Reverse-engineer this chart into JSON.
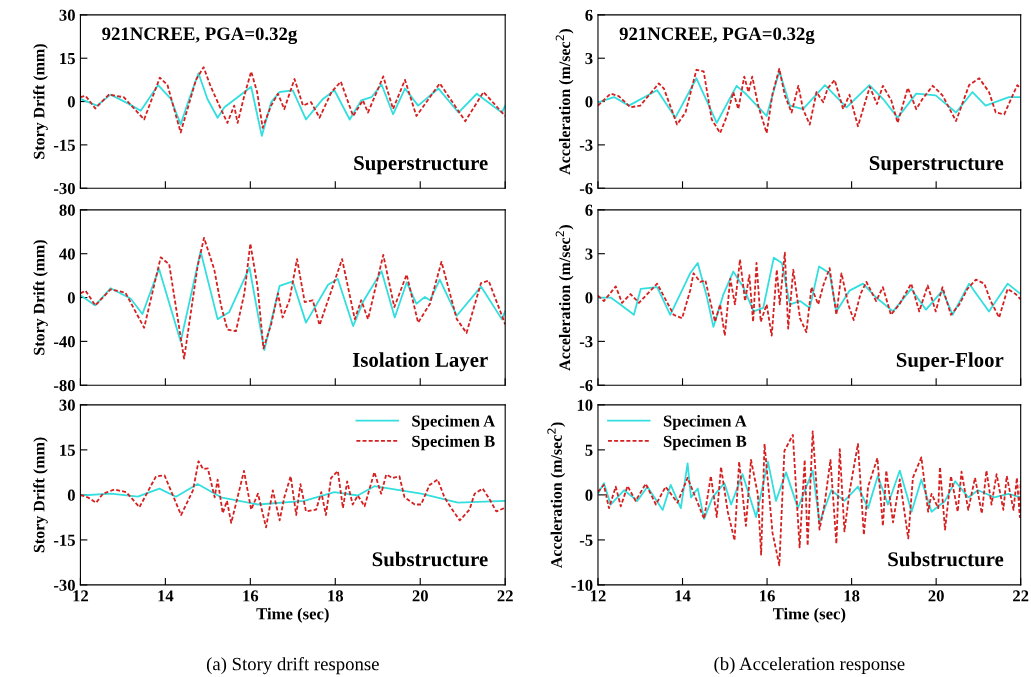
{
  "chart_data": [
    {
      "type": "line",
      "ylabel": "Story Drift (mm)",
      "xlim": [
        12,
        22
      ],
      "xticks": [
        12,
        14,
        16,
        18,
        20,
        22
      ],
      "ylim": [
        -30,
        30
      ],
      "yticks": [
        -30,
        -15,
        0,
        15,
        30
      ],
      "tick_labels": "y",
      "grid": false,
      "annotations": [
        "921NCREE, PGA=0.32g",
        "Superstructure"
      ],
      "series": [
        {
          "color": "#33dede",
          "line_style": "solid",
          "x": [
            12.0,
            12.39,
            12.71,
            13.14,
            13.42,
            13.83,
            14.13,
            14.36,
            14.56,
            14.78,
            14.99,
            15.23,
            15.39,
            15.7,
            16.02,
            16.27,
            16.49,
            16.69,
            17.0,
            17.31,
            17.71,
            17.98,
            18.34,
            18.61,
            18.85,
            19.09,
            19.36,
            19.64,
            19.95,
            20.43,
            20.9,
            21.33,
            21.92,
            22.0
          ],
          "values": [
            0.9,
            -1.4,
            2.4,
            -0.8,
            -3.2,
            5.7,
            0.9,
            -7.9,
            0.9,
            9.8,
            0.9,
            -5.6,
            -2,
            1.5,
            5.1,
            -11.9,
            -0.2,
            3.3,
            3.9,
            -6.2,
            0.9,
            3.9,
            -6.2,
            0.4,
            1.5,
            5.9,
            -4.4,
            4.5,
            -1.4,
            4.5,
            -3.8,
            2.7,
            -3.8,
            -1.4
          ]
        },
        {
          "color": "#d62020",
          "line_style": "dashed",
          "x": [
            12.0,
            12.12,
            12.35,
            12.67,
            13.02,
            13.5,
            13.87,
            14.05,
            14.36,
            14.72,
            14.9,
            15.07,
            15.27,
            15.46,
            15.62,
            15.7,
            15.86,
            16.02,
            16.16,
            16.29,
            16.49,
            16.65,
            16.8,
            17.04,
            17.24,
            17.43,
            17.63,
            17.91,
            18.13,
            18.42,
            18.65,
            18.77,
            19.13,
            19.36,
            19.64,
            19.91,
            20.46,
            21.06,
            21.49,
            22.0
          ],
          "values": [
            1.5,
            2,
            -2.4,
            2.4,
            1.5,
            -6.2,
            8.3,
            5.7,
            -10.7,
            7.5,
            11.9,
            5.1,
            -1.4,
            -7.4,
            -1.4,
            -7.4,
            2.1,
            10.4,
            3.3,
            -9.1,
            -1.4,
            2.7,
            -2.6,
            7.8,
            -1.4,
            -0.2,
            -5.6,
            3.3,
            6.9,
            -5.0,
            0.4,
            -3.8,
            8.7,
            -2.6,
            7.5,
            -5.0,
            6.3,
            -6.8,
            3.3,
            -5.0
          ]
        }
      ]
    },
    {
      "type": "line",
      "ylabel": "Acceleration (m/sec$^{2}$)",
      "xlim": [
        12,
        22
      ],
      "xticks": [
        12,
        14,
        16,
        18,
        20,
        22
      ],
      "ylim": [
        -6,
        6
      ],
      "yticks": [
        -6,
        -3,
        0,
        3,
        6
      ],
      "tick_labels": "y",
      "grid": false,
      "annotations": [
        "921NCREE, PGA=0.32g",
        "Superstructure"
      ],
      "series": [
        {
          "color": "#33dede",
          "line_style": "solid",
          "x": [
            12,
            12.38,
            12.73,
            13.4,
            13.83,
            14.33,
            14.81,
            15.28,
            15.52,
            15.99,
            16.29,
            16.54,
            16.85,
            17.37,
            17.88,
            18.42,
            18.74,
            19.09,
            19.53,
            19.99,
            20.47,
            20.86,
            21.17,
            21.72,
            22.0
          ],
          "values": [
            -0.05,
            0.31,
            -0.28,
            0.78,
            -1.11,
            1.61,
            -1.47,
            1.09,
            0.47,
            -1.0,
            2.09,
            -0.28,
            -0.52,
            1.14,
            -0.4,
            1.14,
            0.19,
            -1.11,
            0.55,
            0.43,
            -0.76,
            0.66,
            -0.28,
            0.31,
            0.31
          ]
        },
        {
          "color": "#d62020",
          "line_style": "dashed",
          "x": [
            12,
            12.3,
            12.49,
            12.77,
            13.0,
            13.44,
            13.56,
            13.87,
            14.07,
            14.33,
            14.5,
            14.69,
            14.89,
            15.05,
            15.2,
            15.32,
            15.46,
            15.56,
            15.65,
            15.79,
            15.99,
            16.13,
            16.29,
            16.42,
            16.58,
            16.74,
            16.85,
            17.01,
            17.17,
            17.33,
            17.43,
            17.6,
            17.8,
            17.95,
            18.15,
            18.43,
            18.6,
            18.74,
            18.94,
            19.09,
            19.33,
            19.53,
            19.68,
            19.92,
            20.15,
            20.47,
            20.78,
            21.02,
            21.25,
            21.41,
            21.61,
            21.92,
            22.0
          ],
          "values": [
            -0.28,
            0.55,
            0.38,
            -0.4,
            -0.28,
            1.26,
            0.9,
            -1.59,
            -0.76,
            2.2,
            2.09,
            -1.23,
            -2.18,
            -1.0,
            0.66,
            -0.52,
            1.73,
            0.66,
            1.73,
            -0.28,
            -2.18,
            0.55,
            2.27,
            0.43,
            -0.76,
            1.09,
            -0.52,
            -1.59,
            0.66,
            -0.05,
            0.9,
            1.49,
            -0.52,
            0.47,
            -1.71,
            1.02,
            -0.17,
            1.09,
            0.07,
            -1.47,
            0.95,
            -0.52,
            0.19,
            1.09,
            0.43,
            -1.35,
            1.14,
            1.61,
            0.66,
            -0.76,
            -0.88,
            1.14,
            0.9
          ]
        }
      ]
    },
    {
      "type": "line",
      "ylabel": "Story Drift (mm)",
      "xlim": [
        12,
        22
      ],
      "xticks": [
        12,
        14,
        16,
        18,
        20,
        22
      ],
      "ylim": [
        -80,
        80
      ],
      "yticks": [
        -80,
        -40,
        0,
        40,
        80
      ],
      "tick_labels": "y",
      "grid": false,
      "annotations": [
        "Isolation Layer"
      ],
      "series": [
        {
          "color": "#33dede",
          "line_style": "solid",
          "x": [
            12.0,
            12.35,
            12.71,
            13.18,
            13.46,
            13.85,
            14.36,
            14.83,
            15.23,
            15.5,
            15.98,
            16.33,
            16.69,
            17.0,
            17.31,
            17.83,
            18.06,
            18.42,
            18.65,
            19.09,
            19.4,
            19.68,
            19.91,
            20.11,
            20.23,
            20.46,
            20.86,
            21.43,
            21.92,
            22.0
          ],
          "values": [
            2.2,
            -7.2,
            8.5,
            -0.9,
            -15,
            26.3,
            -40.1,
            42,
            -19.7,
            -13.5,
            27.3,
            -48,
            10.7,
            14.7,
            -22.9,
            11.6,
            16.9,
            -26,
            -4.1,
            24.1,
            -18.2,
            13.8,
            -5.6,
            0.6,
            -2.5,
            16.3,
            -16.6,
            10,
            -19.7,
            -12.5
          ]
        },
        {
          "color": "#d62020",
          "line_style": "dashed",
          "x": [
            12.0,
            12.12,
            12.35,
            12.71,
            13.06,
            13.5,
            13.89,
            14.09,
            14.44,
            14.76,
            14.91,
            15.15,
            15.31,
            15.46,
            15.66,
            15.86,
            16.0,
            16.17,
            16.31,
            16.49,
            16.65,
            16.76,
            16.92,
            17.1,
            17.28,
            17.47,
            17.63,
            17.83,
            18.16,
            18.46,
            18.61,
            18.77,
            19.13,
            19.39,
            19.68,
            19.95,
            20.23,
            20.5,
            20.86,
            21.09,
            21.43,
            21.61,
            22.0
          ],
          "values": [
            3.8,
            6.3,
            -7.2,
            7.5,
            4.4,
            -27.6,
            36.7,
            30.4,
            -55.8,
            28.8,
            54.5,
            25.7,
            -7.2,
            -29.2,
            -30.7,
            3.8,
            49.2,
            10,
            -46.4,
            -24.5,
            3.8,
            -18.2,
            -2.5,
            35.1,
            -4.1,
            -2.5,
            -25.1,
            -2.5,
            35.1,
            -19.7,
            -2.5,
            -19.7,
            38.9,
            -8.8,
            21,
            -22.9,
            -5.6,
            32.6,
            -19.7,
            -32.3,
            13.2,
            15.4,
            -24.5
          ]
        }
      ]
    },
    {
      "type": "line",
      "ylabel": "Acceleration (m/sec$^{2}$)",
      "xlim": [
        12,
        22
      ],
      "xticks": [
        12,
        14,
        16,
        18,
        20,
        22
      ],
      "ylim": [
        -6,
        6
      ],
      "yticks": [
        -6,
        -3,
        0,
        3,
        6
      ],
      "tick_labels": "y",
      "grid": false,
      "annotations": [
        "Super-Floor"
      ],
      "series": [
        {
          "color": "#33dede",
          "line_style": "solid",
          "x": [
            12,
            12.3,
            12.53,
            12.85,
            13.01,
            13.4,
            13.71,
            14.18,
            14.36,
            14.58,
            14.73,
            14.97,
            15.2,
            15.44,
            15.68,
            15.91,
            16.16,
            16.35,
            16.54,
            16.78,
            17.01,
            17.23,
            17.48,
            17.64,
            17.95,
            18.27,
            18.58,
            18.98,
            19.41,
            19.76,
            20.15,
            20.39,
            20.78,
            21.25,
            21.69,
            22.0
          ],
          "values": [
            0,
            0,
            -0.47,
            -1.18,
            0.59,
            0.71,
            -1.18,
            1.66,
            2.37,
            0,
            -2.01,
            0.24,
            1.78,
            0.71,
            -0.95,
            -0.71,
            2.73,
            2.37,
            -0.47,
            -0.24,
            -0.71,
            2.13,
            1.66,
            -0.95,
            0.47,
            0.95,
            0,
            -0.95,
            0.59,
            -0.83,
            0.47,
            -1.18,
            0.95,
            -0.95,
            0.95,
            0.24
          ]
        },
        {
          "color": "#d62020",
          "line_style": "dashed",
          "x": [
            12,
            12.14,
            12.42,
            12.57,
            12.77,
            12.97,
            13.4,
            13.79,
            13.99,
            14.18,
            14.26,
            14.42,
            14.54,
            14.77,
            14.89,
            15.0,
            15.13,
            15.24,
            15.36,
            15.48,
            15.58,
            15.67,
            15.75,
            15.85,
            15.99,
            16.11,
            16.23,
            16.3,
            16.42,
            16.5,
            16.62,
            16.78,
            16.93,
            17.05,
            17.21,
            17.33,
            17.48,
            17.64,
            17.76,
            17.92,
            18.05,
            18.21,
            18.35,
            18.58,
            18.74,
            18.93,
            19.13,
            19.41,
            19.6,
            19.8,
            19.99,
            20.15,
            20.35,
            20.55,
            20.74,
            20.94,
            21.14,
            21.29,
            21.49,
            21.69,
            21.88,
            22.0
          ],
          "values": [
            0.12,
            -0.24,
            0.76,
            -0.36,
            0.24,
            -0.36,
            0.95,
            -1.18,
            -1.42,
            0.47,
            1.66,
            1.07,
            1.18,
            -1.66,
            -0.47,
            -2.61,
            1.3,
            -0.47,
            2.61,
            -0.24,
            1.54,
            -1.66,
            2.37,
            -1.66,
            -0.47,
            -2.61,
            1.9,
            -0.47,
            3.08,
            -2.13,
            1.9,
            -1.42,
            -2.37,
            0.71,
            -0.47,
            0.83,
            2.01,
            -1.18,
            1.66,
            -0.47,
            -1.54,
            0.24,
            1.07,
            -0.24,
            0.71,
            -1.18,
            -0.47,
            0.95,
            -0.95,
            0.83,
            -0.95,
            0.71,
            -1.18,
            -0.47,
            0.59,
            1.23,
            0.95,
            -0.24,
            -1.37,
            0.59,
            0.24,
            -0.12
          ]
        }
      ]
    },
    {
      "type": "line",
      "title": "(a) Story drift response",
      "xlabel": "Time (sec)",
      "ylabel": "Story Drift (mm)",
      "xlim": [
        12,
        22
      ],
      "xticks": [
        12,
        14,
        16,
        18,
        20,
        22
      ],
      "ylim": [
        -30,
        30
      ],
      "yticks": [
        -30,
        -15,
        0,
        15,
        30
      ],
      "grid": false,
      "legend": "top right",
      "annotations": [
        "Substructure"
      ],
      "series": [
        {
          "name": "Specimen A",
          "color": "#33dede",
          "line_style": "solid",
          "x": [
            12,
            12.72,
            13.35,
            13.86,
            14.25,
            14.76,
            15.31,
            16.18,
            17.27,
            17.98,
            18.53,
            18.92,
            20.02,
            20.89,
            21.98
          ],
          "values": [
            -0.2,
            0.4,
            -0.6,
            2.1,
            -0.6,
            3.6,
            -0.8,
            -3.2,
            -2.0,
            0.9,
            -0.2,
            2.9,
            0.4,
            -2.6,
            -2.0
          ]
        },
        {
          "name": "Specimen B",
          "color": "#d62020",
          "line_style": "dashed",
          "x": [
            12,
            12.17,
            12.37,
            12.53,
            12.8,
            13.08,
            13.39,
            13.78,
            13.98,
            14.37,
            14.65,
            14.78,
            14.89,
            15.0,
            15.16,
            15.23,
            15.35,
            15.45,
            15.55,
            15.7,
            15.85,
            16.02,
            16.18,
            16.37,
            16.53,
            16.69,
            16.8,
            16.95,
            17.08,
            17.18,
            17.31,
            17.55,
            17.67,
            17.78,
            17.9,
            18.06,
            18.18,
            18.28,
            18.41,
            18.53,
            18.69,
            18.92,
            19.08,
            19.2,
            19.35,
            19.51,
            19.63,
            19.87,
            20.02,
            20.22,
            20.41,
            20.57,
            20.73,
            20.93,
            21.16,
            21.28,
            21.47,
            21.63,
            21.79,
            21.98
          ],
          "values": [
            0,
            -0.8,
            -2.6,
            0.4,
            1.8,
            0.9,
            -4.1,
            6.2,
            6.5,
            -6.7,
            1.5,
            11.2,
            8.6,
            8.8,
            -0.8,
            5.1,
            -6.1,
            -2.0,
            -9.3,
            -0.8,
            8,
            -4.9,
            0.4,
            -10.8,
            1.5,
            -8.5,
            -0.8,
            6.2,
            -6.7,
            3.6,
            -5.5,
            -4.9,
            0.9,
            -6.7,
            5.6,
            8,
            -4.4,
            4.5,
            -3.2,
            -0.2,
            -3.8,
            7.6,
            0.4,
            6.8,
            5.6,
            6.2,
            -0.8,
            -3.2,
            -3.2,
            3.3,
            5.1,
            -0.8,
            -4.4,
            -8.5,
            -4.9,
            0.4,
            2.1,
            -1.4,
            -5.5,
            -4.4
          ]
        }
      ]
    },
    {
      "type": "line",
      "title": "(b) Acceleration response",
      "xlabel": "Time (sec)",
      "ylabel": "Acceleration (m/sec$^{2}$)",
      "xlim": [
        12,
        22
      ],
      "xticks": [
        12,
        14,
        16,
        18,
        20,
        22
      ],
      "ylim": [
        -10,
        10
      ],
      "yticks": [
        -10,
        -5,
        0,
        5,
        10
      ],
      "grid": false,
      "legend": "top left",
      "annotations": [
        "Substructure"
      ],
      "series": [
        {
          "name": "Specimen A",
          "color": "#33dede",
          "line_style": "solid",
          "x": [
            12,
            12.14,
            12.3,
            12.62,
            12.93,
            13.17,
            13.53,
            13.72,
            13.96,
            14.12,
            14.2,
            14.36,
            14.51,
            14.71,
            14.99,
            15.15,
            15.42,
            15.74,
            16.02,
            16.21,
            16.45,
            16.73,
            17.08,
            17.24,
            17.52,
            17.83,
            18.15,
            18.39,
            18.62,
            18.86,
            19.14,
            19.42,
            19.65,
            19.89,
            20.21,
            20.45,
            20.76,
            20.99,
            21.38,
            21.71,
            22.0
          ],
          "values": [
            0.12,
            1.31,
            -1.07,
            0.52,
            -0.67,
            0.91,
            -1.67,
            1.11,
            -1.47,
            3.49,
            -0.28,
            0.71,
            -2.66,
            -0.28,
            1.31,
            -1.07,
            2.3,
            -2.46,
            3.69,
            -0.67,
            2.5,
            -1.47,
            2.7,
            -3.06,
            0.52,
            -0.67,
            0.91,
            -1.47,
            2.1,
            -1.07,
            2.7,
            -1.87,
            1.71,
            -1.87,
            -0.67,
            1.51,
            -0.28,
            0.52,
            -0.28,
            0.12,
            -0.28
          ]
        },
        {
          "name": "Specimen B",
          "color": "#d62020",
          "line_style": "dashed",
          "x": [
            12,
            12.14,
            12.26,
            12.42,
            12.54,
            12.7,
            12.89,
            13.13,
            13.37,
            13.6,
            13.88,
            14.12,
            14.51,
            14.67,
            14.81,
            14.91,
            15.07,
            15.23,
            15.34,
            15.5,
            15.62,
            15.78,
            15.86,
            15.94,
            16.13,
            16.29,
            16.41,
            16.61,
            16.77,
            16.89,
            16.96,
            17.08,
            17.24,
            17.36,
            17.5,
            17.64,
            17.72,
            17.83,
            17.95,
            18.15,
            18.29,
            18.39,
            18.61,
            18.74,
            18.82,
            18.98,
            19.14,
            19.34,
            19.45,
            19.65,
            19.81,
            19.89,
            20.05,
            20.09,
            20.21,
            20.35,
            20.51,
            20.6,
            20.76,
            20.92,
            21.08,
            21.19,
            21.31,
            21.43,
            21.59,
            21.67,
            21.83,
            21.91,
            21.98,
            22.0
          ],
          "values": [
            0.32,
            1.11,
            -1.47,
            0.91,
            -1.27,
            0.99,
            -0.67,
            1.23,
            -1.07,
            0.91,
            -0.87,
            1.9,
            -2.66,
            2.1,
            -2.46,
            3.1,
            -1.87,
            -5.04,
            3.69,
            -3.45,
            3.89,
            0.12,
            -6.63,
            5.67,
            -4.25,
            -7.82,
            4.88,
            6.67,
            -5.83,
            3.89,
            -5.63,
            7.06,
            -3.85,
            -1.07,
            3.89,
            -5.44,
            5.08,
            -4.05,
            0.32,
            5.67,
            -4.44,
            0.91,
            4.09,
            -3.45,
            2.7,
            -3.06,
            1.71,
            -4.84,
            1.9,
            4.17,
            -1.87,
            0.12,
            -1.47,
            3.1,
            -3.85,
            2.1,
            -1.87,
            2.58,
            -1.67,
            1.9,
            -2.06,
            2.7,
            -1.07,
            2.3,
            -1.67,
            2.1,
            -1.67,
            1.9,
            -2.46,
            1.51
          ]
        }
      ]
    }
  ]
}
